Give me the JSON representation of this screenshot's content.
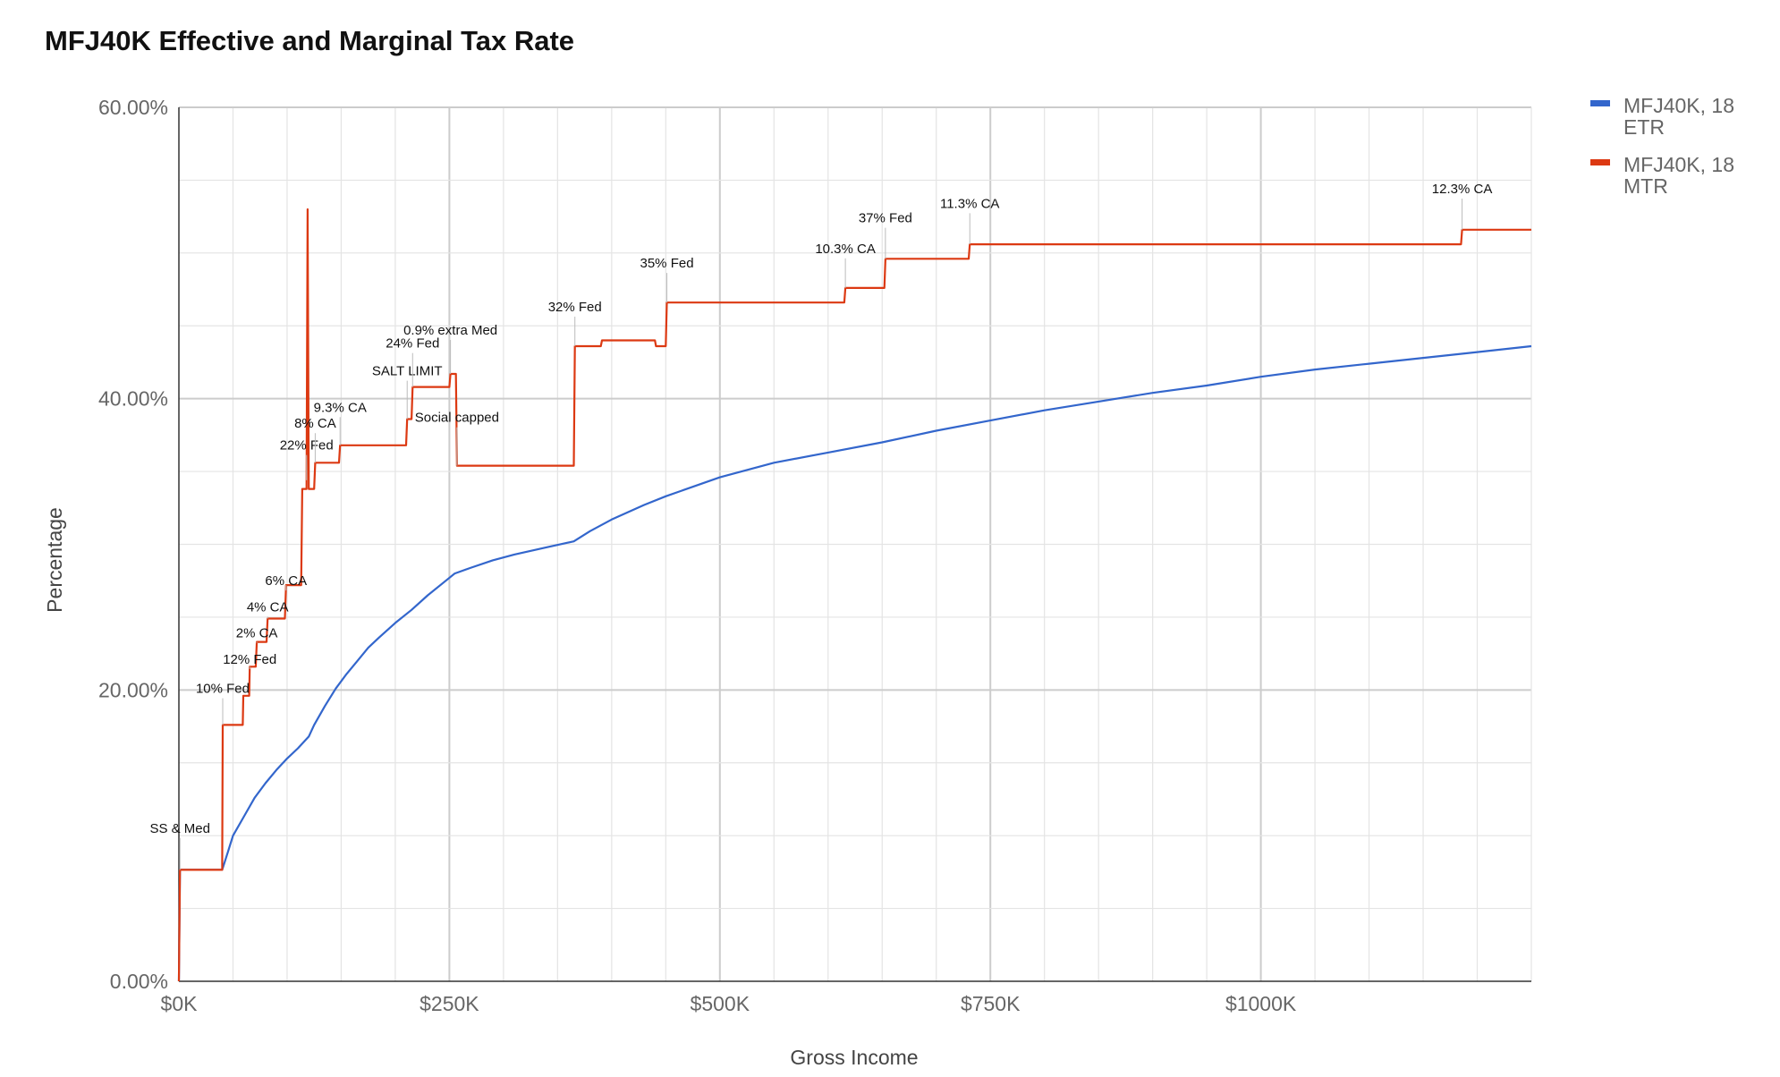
{
  "chart_data": {
    "type": "line",
    "title": "MFJ40K Effective and Marginal Tax Rate",
    "xlabel": "Gross Income",
    "ylabel": "Percentage",
    "xlim": [
      0,
      1250000
    ],
    "ylim": [
      0,
      60
    ],
    "x_ticks": [
      0,
      250000,
      500000,
      750000,
      1000000
    ],
    "x_tick_labels": [
      "$0K",
      "$250K",
      "$500K",
      "$750K",
      "$1000K"
    ],
    "y_ticks": [
      0,
      20,
      40,
      60
    ],
    "y_tick_labels": [
      "0.00%",
      "20.00%",
      "40.00%",
      "60.00%"
    ],
    "grid": true,
    "legend_position": "right",
    "series": [
      {
        "name": "MFJ40K, 18 ETR",
        "color": "#3366cc",
        "points": [
          [
            0,
            0
          ],
          [
            1000,
            7.65
          ],
          [
            40000,
            7.65
          ],
          [
            45000,
            8.8
          ],
          [
            50000,
            10.0
          ],
          [
            60000,
            11.3
          ],
          [
            70000,
            12.6
          ],
          [
            80000,
            13.6
          ],
          [
            90000,
            14.5
          ],
          [
            100000,
            15.3
          ],
          [
            110000,
            16.0
          ],
          [
            120000,
            16.8
          ],
          [
            125000,
            17.6
          ],
          [
            135000,
            18.9
          ],
          [
            145000,
            20.1
          ],
          [
            155000,
            21.1
          ],
          [
            165000,
            22.0
          ],
          [
            175000,
            22.9
          ],
          [
            185000,
            23.6
          ],
          [
            200000,
            24.6
          ],
          [
            215000,
            25.5
          ],
          [
            230000,
            26.5
          ],
          [
            245000,
            27.4
          ],
          [
            255000,
            28.0
          ],
          [
            270000,
            28.4
          ],
          [
            290000,
            28.9
          ],
          [
            310000,
            29.3
          ],
          [
            340000,
            29.8
          ],
          [
            365000,
            30.2
          ],
          [
            380000,
            30.9
          ],
          [
            400000,
            31.7
          ],
          [
            430000,
            32.7
          ],
          [
            450000,
            33.3
          ],
          [
            500000,
            34.6
          ],
          [
            550000,
            35.6
          ],
          [
            600000,
            36.3
          ],
          [
            650000,
            37.0
          ],
          [
            700000,
            37.8
          ],
          [
            750000,
            38.5
          ],
          [
            800000,
            39.2
          ],
          [
            850000,
            39.8
          ],
          [
            900000,
            40.4
          ],
          [
            950000,
            40.9
          ],
          [
            1000000,
            41.5
          ],
          [
            1050000,
            42.0
          ],
          [
            1100000,
            42.4
          ],
          [
            1150000,
            42.8
          ],
          [
            1200000,
            43.2
          ],
          [
            1250000,
            43.6
          ]
        ]
      },
      {
        "name": "MFJ40K, 18 MTR",
        "color": "#dc3912",
        "points": [
          [
            0,
            0
          ],
          [
            1000,
            7.65
          ],
          [
            40000,
            7.65
          ],
          [
            40500,
            17.6
          ],
          [
            59000,
            17.6
          ],
          [
            59500,
            19.6
          ],
          [
            65000,
            19.6
          ],
          [
            65500,
            21.6
          ],
          [
            71000,
            21.6
          ],
          [
            72000,
            23.3
          ],
          [
            81000,
            23.3
          ],
          [
            82000,
            24.9
          ],
          [
            98000,
            24.9
          ],
          [
            99000,
            27.2
          ],
          [
            113000,
            27.2
          ],
          [
            114000,
            33.8
          ],
          [
            118000,
            33.8
          ],
          [
            119000,
            53.0
          ],
          [
            120000,
            33.8
          ],
          [
            125000,
            33.8
          ],
          [
            126000,
            35.6
          ],
          [
            148000,
            35.6
          ],
          [
            149000,
            36.8
          ],
          [
            210000,
            36.8
          ],
          [
            211000,
            38.6
          ],
          [
            215000,
            38.6
          ],
          [
            216000,
            40.8
          ],
          [
            250000,
            40.8
          ],
          [
            251000,
            41.7
          ],
          [
            256000,
            41.7
          ],
          [
            257000,
            35.4
          ],
          [
            365000,
            35.4
          ],
          [
            366000,
            43.6
          ],
          [
            390000,
            43.6
          ],
          [
            391000,
            44.0
          ],
          [
            440000,
            44.0
          ],
          [
            441000,
            43.6
          ],
          [
            450000,
            43.6
          ],
          [
            451000,
            46.6
          ],
          [
            615000,
            46.6
          ],
          [
            616000,
            47.6
          ],
          [
            652000,
            47.6
          ],
          [
            653000,
            49.6
          ],
          [
            730000,
            49.6
          ],
          [
            731000,
            50.6
          ],
          [
            1185000,
            50.6
          ],
          [
            1186000,
            51.6
          ],
          [
            1250000,
            51.6
          ]
        ]
      }
    ],
    "annotations": [
      {
        "text": "SS & Med",
        "x": 1000,
        "y": 7.65,
        "label_y": 10.2
      },
      {
        "text": "10% Fed",
        "x": 40500,
        "y": 17.6,
        "label_y": 19.8
      },
      {
        "text": "12% Fed",
        "x": 65500,
        "y": 21.6,
        "label_y": 21.8
      },
      {
        "text": "2% CA",
        "x": 72000,
        "y": 23.3,
        "label_y": 23.6
      },
      {
        "text": "4% CA",
        "x": 82000,
        "y": 24.9,
        "label_y": 25.4
      },
      {
        "text": "6% CA",
        "x": 99000,
        "y": 27.2,
        "label_y": 27.2
      },
      {
        "text": "22% Fed",
        "x": 118000,
        "y": 34.4,
        "label_y": 36.5
      },
      {
        "text": "8% CA",
        "x": 126000,
        "y": 35.6,
        "label_y": 38.0
      },
      {
        "text": "9.3% CA",
        "x": 149000,
        "y": 36.8,
        "label_y": 39.1
      },
      {
        "text": "SALT LIMIT",
        "x": 211000,
        "y": 38.6,
        "label_y": 41.6
      },
      {
        "text": "24% Fed",
        "x": 216000,
        "y": 40.8,
        "label_y": 43.5
      },
      {
        "text": "0.9% extra Med",
        "x": 251000,
        "y": 41.7,
        "label_y": 44.4
      },
      {
        "text": "Social capped",
        "x": 257000,
        "y": 35.4,
        "label_y": 38.4
      },
      {
        "text": "32% Fed",
        "x": 366000,
        "y": 43.6,
        "label_y": 46.0
      },
      {
        "text": "35% Fed",
        "x": 451000,
        "y": 46.6,
        "label_y": 49.0
      },
      {
        "text": "10.3% CA",
        "x": 616000,
        "y": 47.6,
        "label_y": 50.0
      },
      {
        "text": "37% Fed",
        "x": 653000,
        "y": 49.6,
        "label_y": 52.1
      },
      {
        "text": "11.3% CA",
        "x": 731000,
        "y": 50.6,
        "label_y": 53.1
      },
      {
        "text": "12.3% CA",
        "x": 1186000,
        "y": 51.6,
        "label_y": 54.1
      }
    ]
  }
}
